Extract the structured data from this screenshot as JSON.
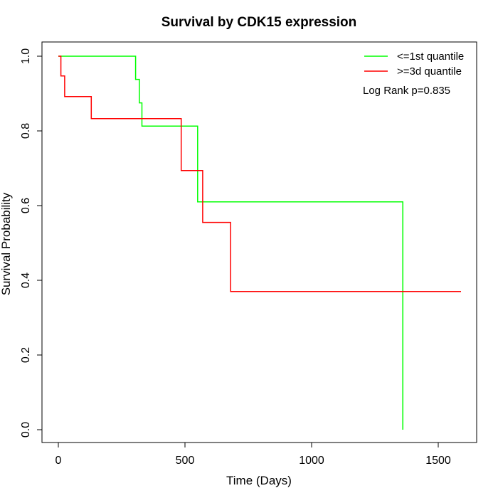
{
  "chart_data": {
    "type": "line",
    "title": "Survival by CDK15 expression",
    "xlabel": "Time (Days)",
    "ylabel": "Survival Probability",
    "xlim": [
      0,
      1600
    ],
    "ylim": [
      0,
      1.0
    ],
    "x_ticks": [
      0,
      500,
      1000,
      1500
    ],
    "x_tick_labels": [
      "0",
      "500",
      "1000",
      "1500"
    ],
    "y_ticks": [
      0.0,
      0.2,
      0.4,
      0.6,
      0.8,
      1.0
    ],
    "y_tick_labels": [
      "0.0",
      "0.2",
      "0.4",
      "0.6",
      "0.8",
      "1.0"
    ],
    "grid": false,
    "legend_position": "top-right",
    "annotation": "Log Rank p=0.835",
    "series": [
      {
        "name": "<=1st quantile",
        "color": "#00ff00",
        "step_points": [
          [
            0,
            1.0
          ],
          [
            305,
            1.0
          ],
          [
            305,
            0.938
          ],
          [
            320,
            0.938
          ],
          [
            320,
            0.875
          ],
          [
            330,
            0.875
          ],
          [
            330,
            0.813
          ],
          [
            550,
            0.813
          ],
          [
            550,
            0.61
          ],
          [
            1360,
            0.61
          ],
          [
            1360,
            0.0
          ]
        ]
      },
      {
        "name": ">=3d quantile",
        "color": "#ff0000",
        "step_points": [
          [
            0,
            1.0
          ],
          [
            10,
            1.0
          ],
          [
            10,
            0.947
          ],
          [
            25,
            0.947
          ],
          [
            25,
            0.892
          ],
          [
            130,
            0.892
          ],
          [
            130,
            0.833
          ],
          [
            485,
            0.833
          ],
          [
            485,
            0.694
          ],
          [
            570,
            0.694
          ],
          [
            570,
            0.555
          ],
          [
            680,
            0.555
          ],
          [
            680,
            0.37
          ],
          [
            1590,
            0.37
          ]
        ]
      }
    ]
  }
}
